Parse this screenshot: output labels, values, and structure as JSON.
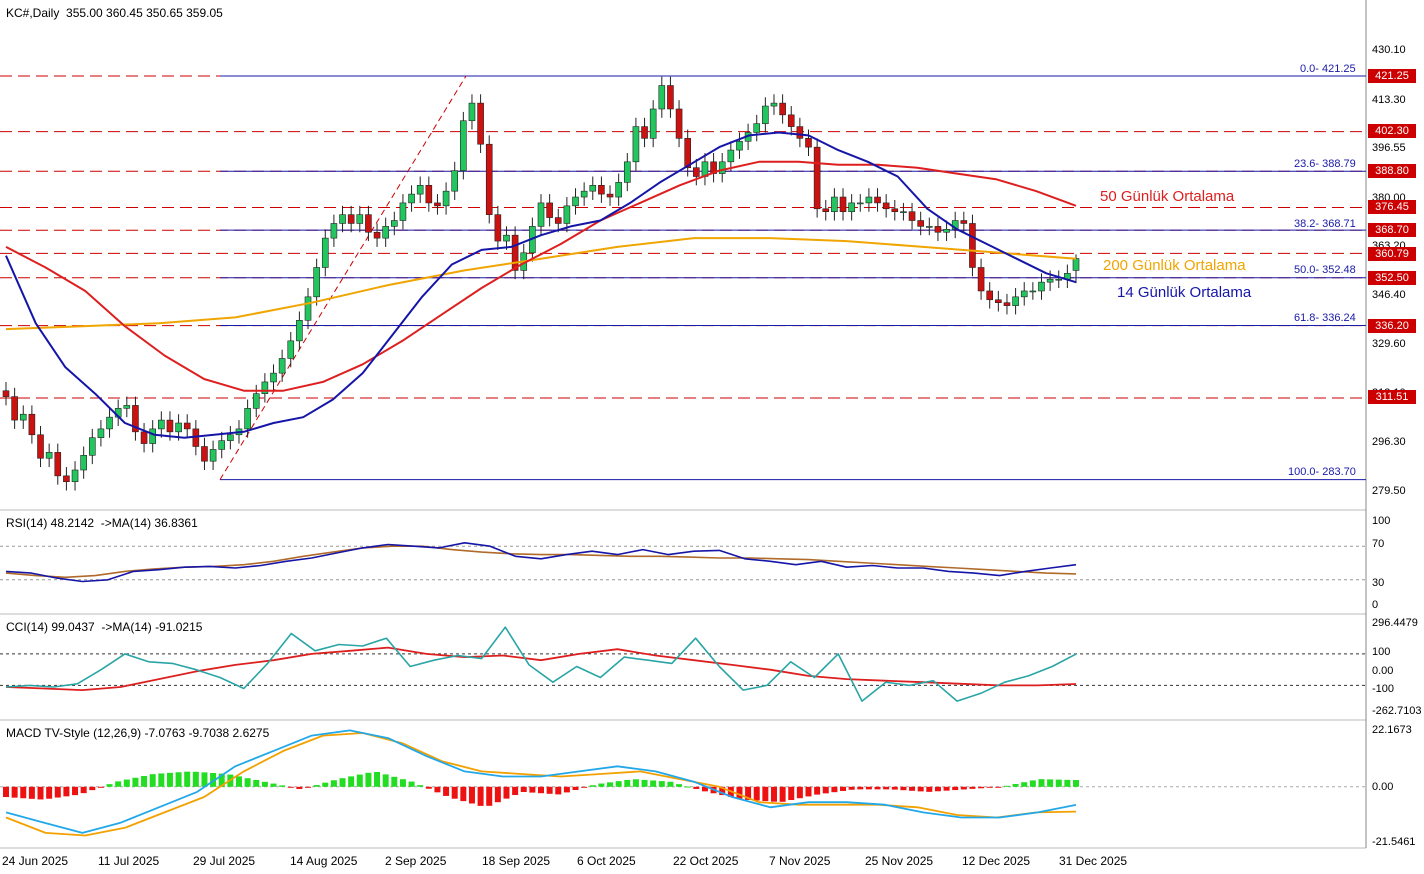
{
  "header": {
    "symbol_info": "KC#,Daily  355.00 360.45 350.65 359.05",
    "rsi_label": "RSI(14) 48.2142  ->MA(14) 36.8361",
    "cci_label": "CCI(14) 99.0437  ->MA(14) -91.0215",
    "macd_label": "MACD TV-Style (12,26,9) -7.0763 -9.7038 2.6275"
  },
  "annotations": {
    "ma50": "50 Günlük Ortalama",
    "ma200": "200 Günlük Ortalama",
    "ma14": "14 Günlük Ortalama"
  },
  "fib_labels": [
    "0.0- 421.25",
    "23.6- 388.79",
    "38.2- 368.71",
    "50.0- 352.48",
    "61.8- 336.24",
    "100.0- 283.70"
  ],
  "price_axis": [
    "430.10",
    "413.30",
    "396.55",
    "380.00",
    "363.20",
    "346.40",
    "329.60",
    "313.10",
    "296.30",
    "279.50"
  ],
  "price_tags": [
    "421.25",
    "402.30",
    "388.80",
    "376.45",
    "368.70",
    "360.79",
    "352.50",
    "336.20",
    "311.51"
  ],
  "rsi_axis": [
    "100",
    "70",
    "30",
    "0"
  ],
  "cci_axis": [
    "296.4479",
    "100",
    "0.00",
    "-100",
    "-262.7103"
  ],
  "macd_axis": [
    "22.1673",
    "0.00",
    "-21.5461"
  ],
  "x_axis": [
    "24 Jun 2025",
    "11 Jul 2025",
    "29 Jul 2025",
    "14 Aug 2025",
    "2 Sep 2025",
    "18 Sep 2025",
    "6 Oct 2025",
    "22 Oct 2025",
    "7 Nov 2025",
    "25 Nov 2025",
    "12 Dec 2025",
    "31 Dec 2025"
  ],
  "colors": {
    "bull": "#22c55e",
    "bear": "#cc1111",
    "ma14": "#1515a8",
    "ma50": "#dd1f1f",
    "ma200": "#f0a500",
    "fib": "#1a1aa8",
    "level": "#cc0000",
    "cci": "#2aa5a5",
    "macd": "#22a8e8",
    "signal": "#f2a100"
  },
  "chart_data": [
    {
      "type": "candlestick",
      "title": "KC#,Daily",
      "ylim": [
        279.5,
        430.1
      ],
      "x_start": "24 Jun 2025",
      "x_end": "31 Dec 2025",
      "ohlc_last": {
        "open": 355.0,
        "high": 360.45,
        "low": 350.65,
        "close": 359.05
      },
      "closes": [
        312,
        304,
        306,
        299,
        291,
        293,
        285,
        283,
        287,
        292,
        298,
        301,
        305,
        308,
        309,
        300,
        296,
        301,
        304,
        300,
        303,
        301,
        295,
        290,
        294,
        297,
        299,
        301,
        308,
        313,
        317,
        320,
        325,
        331,
        338,
        346,
        356,
        366,
        371,
        374,
        371,
        374,
        368,
        366,
        370,
        372,
        378,
        381,
        384,
        378,
        377,
        382,
        389,
        406,
        412,
        398,
        374,
        365,
        367,
        355,
        361,
        370,
        378,
        373,
        371,
        377,
        380,
        382,
        384,
        381,
        380,
        385,
        392,
        404,
        400,
        410,
        418,
        410,
        400,
        390,
        387,
        392,
        388,
        392,
        396,
        399,
        402,
        405,
        411,
        412,
        408,
        404,
        400,
        397,
        376,
        375,
        380,
        375,
        378,
        378,
        380,
        378,
        376,
        375,
        375,
        372,
        370,
        370,
        368,
        369,
        372,
        371,
        356,
        348,
        345,
        344,
        343,
        346,
        348,
        348,
        351,
        352,
        352,
        354,
        359
      ],
      "ma14": [
        360,
        337,
        322,
        313,
        303,
        299,
        298,
        299,
        300,
        303,
        305,
        311,
        320,
        333,
        346,
        357,
        362,
        363,
        367,
        370,
        372,
        378,
        385,
        391,
        397,
        401,
        402,
        401,
        396,
        392,
        387,
        376,
        369,
        364,
        359,
        354,
        351
      ],
      "ma50": [
        363,
        356,
        348,
        336,
        326,
        318,
        314,
        314,
        317,
        323,
        331,
        340,
        349,
        357,
        364,
        372,
        378,
        384,
        389,
        392,
        392,
        391,
        391,
        390,
        388,
        386,
        382,
        377
      ],
      "ma200": [
        335,
        336,
        337,
        339,
        344,
        350,
        355,
        359,
        363,
        366,
        366,
        365,
        363,
        361,
        359
      ],
      "fib_levels": [
        {
          "ratio": "0.0",
          "price": 421.25
        },
        {
          "ratio": "23.6",
          "price": 388.79
        },
        {
          "ratio": "38.2",
          "price": 368.71
        },
        {
          "ratio": "50.0",
          "price": 352.48
        },
        {
          "ratio": "61.8",
          "price": 336.24
        },
        {
          "ratio": "100.0",
          "price": 283.7
        }
      ],
      "levels": [
        421.25,
        402.3,
        388.8,
        376.45,
        368.7,
        360.79,
        352.5,
        336.2,
        311.51
      ]
    },
    {
      "type": "line",
      "title": "RSI(14)",
      "ylim": [
        0,
        100
      ],
      "levels": [
        70,
        30
      ],
      "series": [
        {
          "name": "RSI(14)",
          "last": 48.2142,
          "values": [
            40,
            38,
            32,
            28,
            30,
            40,
            42,
            45,
            46,
            44,
            47,
            52,
            56,
            62,
            68,
            72,
            70,
            68,
            74,
            70,
            58,
            55,
            60,
            64,
            60,
            66,
            60,
            64,
            65,
            55,
            52,
            48,
            52,
            45,
            47,
            44,
            44,
            40,
            38,
            35,
            40,
            44,
            48
          ]
        },
        {
          "name": "MA(14)",
          "last": 36.8361,
          "values": [
            38,
            35,
            33,
            35,
            40,
            43,
            45,
            46,
            48,
            52,
            58,
            63,
            68,
            70,
            70,
            66,
            63,
            61,
            60,
            60,
            59,
            58,
            58,
            57,
            56,
            56,
            55,
            54,
            52,
            50,
            48,
            46,
            44,
            42,
            40,
            38,
            37
          ]
        }
      ]
    },
    {
      "type": "line",
      "title": "CCI(14)",
      "ylim": [
        -262.7103,
        296.4479
      ],
      "levels": [
        100,
        -100
      ],
      "series": [
        {
          "name": "CCI(14)",
          "last": 99.0437,
          "values": [
            -110,
            -100,
            -110,
            -90,
            0,
            100,
            50,
            40,
            0,
            -50,
            -120,
            40,
            230,
            120,
            160,
            150,
            200,
            20,
            60,
            90,
            70,
            270,
            30,
            -80,
            20,
            -50,
            80,
            60,
            40,
            200,
            20,
            -130,
            -100,
            50,
            -50,
            100,
            -200,
            -80,
            -100,
            -70,
            -200,
            -150,
            -80,
            -40,
            20,
            99
          ]
        },
        {
          "name": "MA(14)",
          "last": -91.0215,
          "values": [
            -110,
            -120,
            -130,
            -110,
            -60,
            -10,
            30,
            60,
            100,
            120,
            140,
            100,
            80,
            90,
            60,
            100,
            130,
            90,
            60,
            30,
            0,
            -40,
            -60,
            -70,
            -80,
            -90,
            -100,
            -100,
            -91
          ]
        }
      ]
    },
    {
      "type": "bar+line",
      "title": "MACD TV-Style (12,26,9)",
      "ylim": [
        -21.5461,
        22.1673
      ],
      "series": [
        {
          "name": "MACD",
          "last": -7.0763,
          "values": [
            -10,
            -14,
            -18,
            -14,
            -8,
            -2,
            8,
            14,
            20,
            22,
            19,
            12,
            6,
            4,
            4,
            6,
            8,
            6,
            2,
            -4,
            -8,
            -6,
            -6,
            -7,
            -10,
            -12,
            -12,
            -10,
            -7.08
          ]
        },
        {
          "name": "Signal",
          "last": -9.7038,
          "values": [
            -12,
            -18,
            -19,
            -16,
            -10,
            -4,
            6,
            14,
            20,
            21,
            17,
            10,
            6,
            5,
            4,
            5,
            6,
            3,
            0,
            -6,
            -7,
            -7,
            -7,
            -8,
            -11,
            -12,
            -10,
            -9.7
          ]
        },
        {
          "name": "Histogram",
          "last": 2.6275,
          "values": [
            -4,
            -5,
            -3,
            2,
            5,
            6,
            5,
            2,
            -1,
            3,
            6,
            2,
            -4,
            -8,
            -2,
            -3,
            1,
            3,
            2,
            -2,
            -5,
            -6,
            -3,
            -1,
            -1,
            -2,
            -1,
            0,
            3,
            2.63
          ]
        }
      ]
    }
  ]
}
